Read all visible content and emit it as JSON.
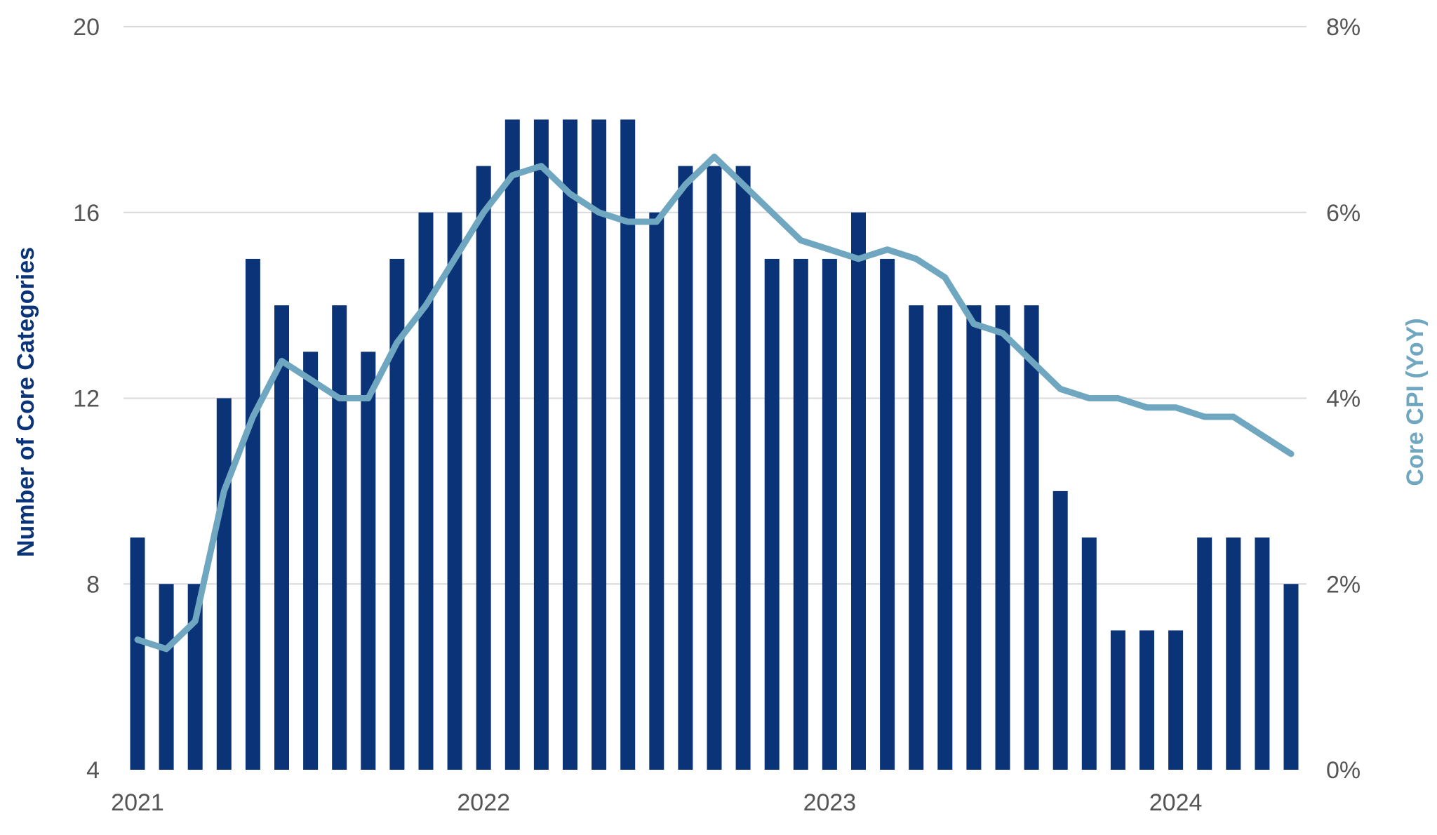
{
  "chart_data": {
    "type": "bar+line",
    "title": "",
    "colors": {
      "bars": "#0a3477",
      "line": "#6fa6c0",
      "grid": "#d9d9d9",
      "tick_text": "#555555"
    },
    "grid": true,
    "left_axis": {
      "label": "Number of Core Categories",
      "range": [
        4,
        20
      ],
      "ticks": [
        4,
        8,
        12,
        16,
        20
      ],
      "tick_labels": [
        "4",
        "8",
        "12",
        "16",
        "20"
      ]
    },
    "right_axis": {
      "label": "Core CPI (YoY)",
      "range": [
        0,
        8
      ],
      "ticks": [
        0,
        2,
        4,
        6,
        8
      ],
      "tick_labels": [
        "0%",
        "2%",
        "4%",
        "6%",
        "8%"
      ]
    },
    "x_axis": {
      "tick_labels": [
        "2021",
        "2022",
        "2023",
        "2024"
      ],
      "tick_dates": [
        "2021-01",
        "2022-01",
        "2023-01",
        "2024-01"
      ]
    },
    "x": [
      "2021-01",
      "2021-02",
      "2021-03",
      "2021-04",
      "2021-05",
      "2021-06",
      "2021-07",
      "2021-08",
      "2021-09",
      "2021-10",
      "2021-11",
      "2021-12",
      "2022-01",
      "2022-02",
      "2022-03",
      "2022-04",
      "2022-05",
      "2022-06",
      "2022-07",
      "2022-08",
      "2022-09",
      "2022-10",
      "2022-11",
      "2022-12",
      "2023-01",
      "2023-02",
      "2023-03",
      "2023-04",
      "2023-05",
      "2023-06",
      "2023-07",
      "2023-08",
      "2023-09",
      "2023-10",
      "2023-11",
      "2023-12",
      "2024-01",
      "2024-02",
      "2024-03",
      "2024-04",
      "2024-05"
    ],
    "series": [
      {
        "axis": "left",
        "kind": "bar",
        "values": [
          9,
          8,
          8,
          12,
          15,
          14,
          13,
          14,
          13,
          15,
          16,
          16,
          17,
          18,
          18,
          18,
          18,
          18,
          16,
          17,
          17,
          17,
          15,
          15,
          15,
          16,
          15,
          14,
          14,
          14,
          14,
          14,
          10,
          9,
          7,
          7,
          7,
          9,
          9,
          9,
          8
        ]
      },
      {
        "axis": "right",
        "kind": "line",
        "values": [
          1.4,
          1.3,
          1.6,
          3.0,
          3.8,
          4.4,
          4.2,
          4.0,
          4.0,
          4.6,
          5.0,
          5.5,
          6.0,
          6.4,
          6.5,
          6.2,
          6.0,
          5.9,
          5.9,
          6.3,
          6.6,
          6.3,
          6.0,
          5.7,
          5.6,
          5.5,
          5.6,
          5.5,
          5.3,
          4.8,
          4.7,
          4.4,
          4.1,
          4.0,
          4.0,
          3.9,
          3.9,
          3.8,
          3.8,
          3.6,
          3.4
        ]
      }
    ]
  }
}
